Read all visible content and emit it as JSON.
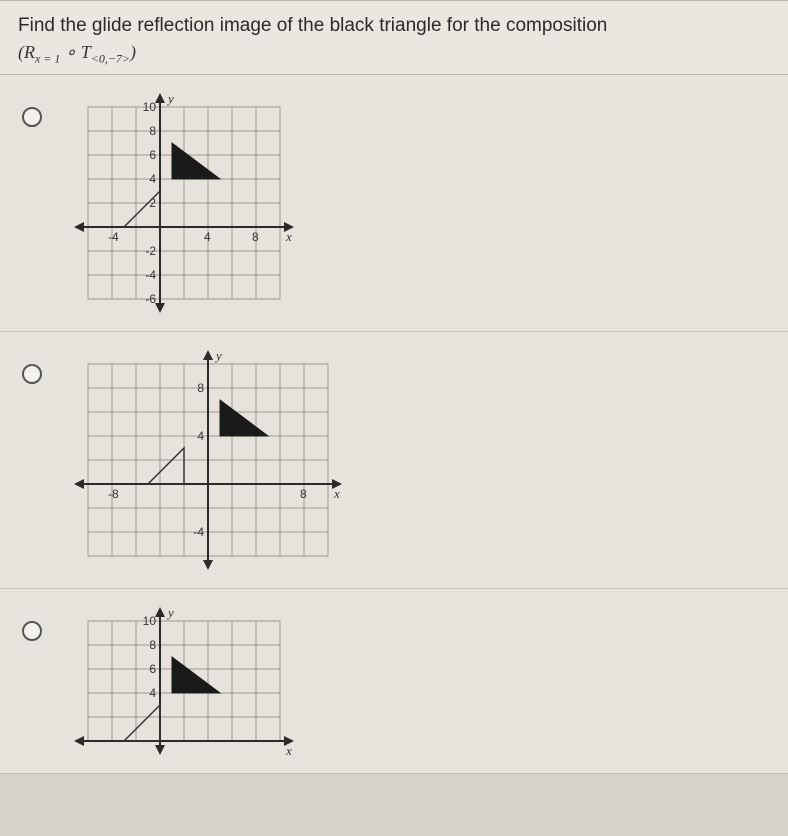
{
  "question": {
    "line1": "Find the glide reflection image of the black triangle for the composition",
    "formula": "(R<sub>x = 1</sub> ∘ T<sub>&lt;0,−7&gt;</sub>)"
  },
  "graphs": {
    "unit": 12,
    "axis_color": "#2a2a2a",
    "grid_color": "#9e9a92",
    "outline_stroke": "#333",
    "fill_color": "#1a1a1a",
    "options": [
      {
        "x_range": [
          -6,
          10
        ],
        "y_range": [
          -6,
          10
        ],
        "x_ticks": [
          {
            "v": -4,
            "l": "-4"
          },
          {
            "v": 4,
            "l": "4"
          },
          {
            "v": 8,
            "l": "8"
          }
        ],
        "y_ticks": [
          {
            "v": 10,
            "l": "10"
          },
          {
            "v": 8,
            "l": "8"
          },
          {
            "v": 6,
            "l": "6"
          },
          {
            "v": 4,
            "l": "4"
          },
          {
            "v": 2,
            "l": "2"
          },
          {
            "v": -2,
            "l": "-2"
          },
          {
            "v": -4,
            "l": "-4"
          },
          {
            "v": -6,
            "l": "-6"
          }
        ],
        "outline_tri": [
          [
            -3,
            0
          ],
          [
            0,
            0
          ],
          [
            0,
            3
          ]
        ],
        "filled_tri": [
          [
            1,
            7
          ],
          [
            5,
            4
          ],
          [
            1,
            4
          ]
        ]
      },
      {
        "x_range": [
          -10,
          10
        ],
        "y_range": [
          -6,
          10
        ],
        "x_ticks": [
          {
            "v": -8,
            "l": "-8"
          },
          {
            "v": 8,
            "l": "8"
          }
        ],
        "y_ticks": [
          {
            "v": 8,
            "l": "8"
          },
          {
            "v": 4,
            "l": "4"
          },
          {
            "v": -4,
            "l": "-4"
          }
        ],
        "outline_tri": [
          [
            -5,
            0
          ],
          [
            -2,
            0
          ],
          [
            -2,
            3
          ]
        ],
        "filled_tri": [
          [
            1,
            7
          ],
          [
            5,
            4
          ],
          [
            1,
            4
          ]
        ]
      },
      {
        "x_range": [
          -6,
          10
        ],
        "y_range": [
          0,
          10
        ],
        "x_ticks": [],
        "y_ticks": [
          {
            "v": 10,
            "l": "10"
          },
          {
            "v": 8,
            "l": "8"
          },
          {
            "v": 6,
            "l": "6"
          },
          {
            "v": 4,
            "l": "4"
          }
        ],
        "outline_tri": [
          [
            -3,
            0
          ],
          [
            0,
            0
          ],
          [
            0,
            3
          ]
        ],
        "filled_tri": [
          [
            1,
            7
          ],
          [
            5,
            4
          ],
          [
            1,
            4
          ]
        ]
      }
    ]
  }
}
